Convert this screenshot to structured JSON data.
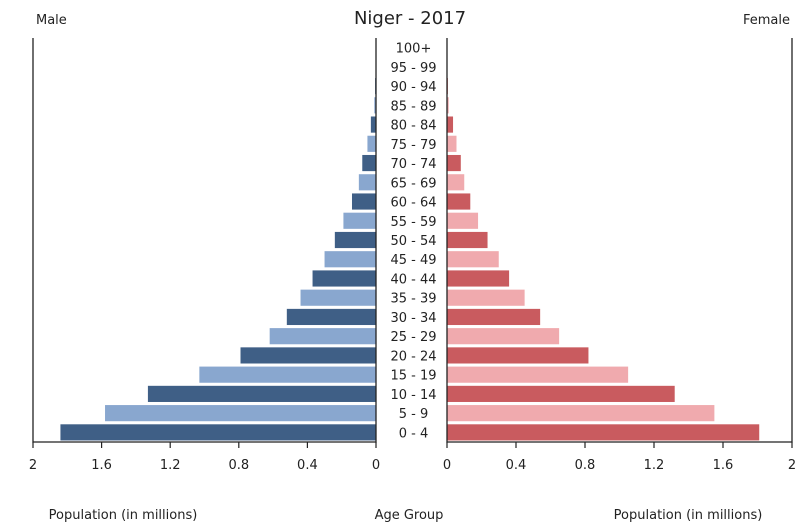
{
  "chart_data": {
    "type": "bar",
    "title": "Niger - 2017",
    "left_label": "Male",
    "right_label": "Female",
    "xlabel_left": "Population (in millions)",
    "xlabel_center": "Age Group",
    "xlabel_right": "Population (in millions)",
    "xlim": [
      0,
      2
    ],
    "xticks": [
      "2",
      "1.6",
      "1.2",
      "0.8",
      "0.4",
      "0",
      "0",
      "0.4",
      "0.8",
      "1.2",
      "1.6",
      "2"
    ],
    "categories": [
      "100+",
      "95 - 99",
      "90 - 94",
      "85 - 89",
      "80 - 84",
      "75 - 79",
      "70 - 74",
      "65 - 69",
      "60 - 64",
      "55 - 59",
      "50 - 54",
      "45 - 49",
      "40 - 44",
      "35 - 39",
      "30 - 34",
      "25 - 29",
      "20 - 24",
      "15 - 19",
      "10 - 14",
      "5 - 9",
      "0 - 4"
    ],
    "series": [
      {
        "side": "left",
        "values": [
          0.0,
          0.002,
          0.005,
          0.01,
          0.03,
          0.05,
          0.08,
          0.1,
          0.14,
          0.19,
          0.24,
          0.3,
          0.37,
          0.44,
          0.52,
          0.62,
          0.79,
          1.03,
          1.33,
          1.58,
          1.84
        ],
        "colors": [
          "#3f5f86",
          "#89a7cf"
        ]
      },
      {
        "side": "right",
        "values": [
          0.0,
          0.002,
          0.005,
          0.01,
          0.035,
          0.055,
          0.08,
          0.1,
          0.135,
          0.18,
          0.235,
          0.3,
          0.36,
          0.45,
          0.54,
          0.65,
          0.82,
          1.05,
          1.32,
          1.55,
          1.81
        ],
        "colors": [
          "#c95b5f",
          "#f0aaae"
        ]
      }
    ]
  }
}
